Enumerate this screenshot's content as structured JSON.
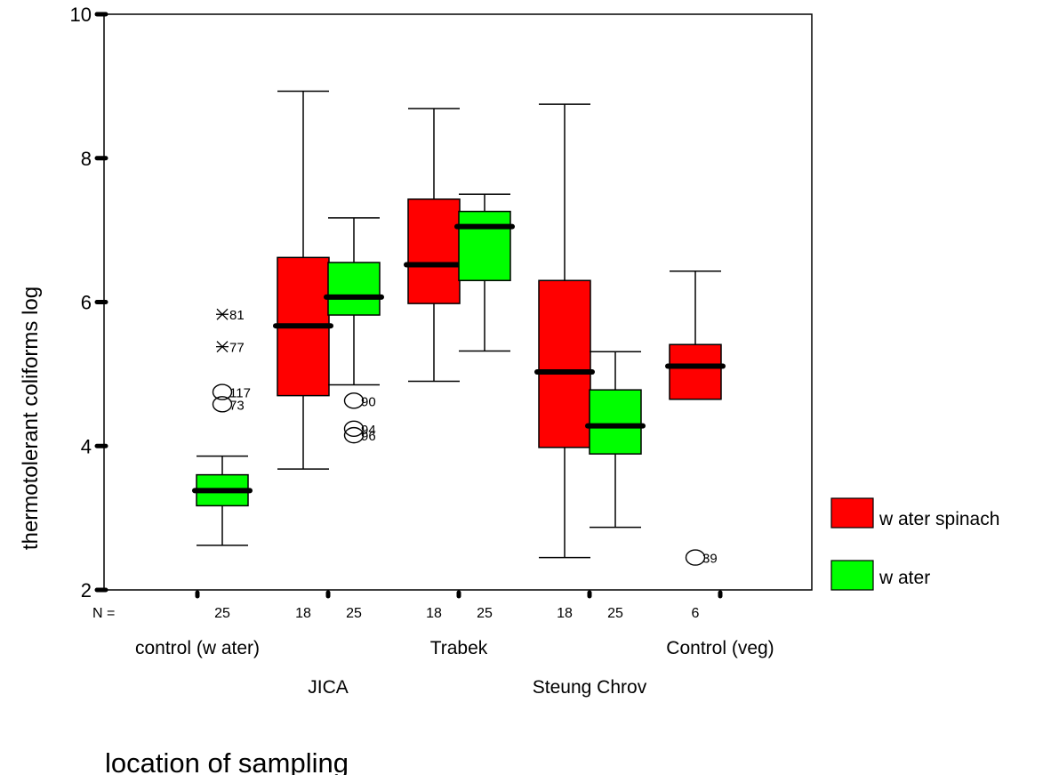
{
  "chart_data": {
    "type": "boxplot",
    "ylabel": "thermotolerant coliforms log",
    "xlabel": "location of sampling",
    "ylim": [
      2,
      10
    ],
    "yticks": [
      "2",
      "4",
      "6",
      "8",
      "10"
    ],
    "n_prefix": "N =",
    "categories": [
      "control (w ater)",
      "JICA",
      "Trabek",
      "Steung Chrov",
      "Control (veg)"
    ],
    "legend": {
      "placement": "right",
      "items": [
        {
          "label": "w ater spinach",
          "color": "#ff0000"
        },
        {
          "label": "w ater",
          "color": "#00ff00"
        }
      ]
    },
    "boxes": [
      {
        "category": 0,
        "series": 1,
        "n": "25",
        "whisker_low": 2.62,
        "q1": 3.17,
        "median": 3.38,
        "q3": 3.6,
        "whisker_high": 3.86,
        "outliers": [
          {
            "value": 5.83,
            "label": "81",
            "marker": "star"
          },
          {
            "value": 5.38,
            "label": "77",
            "marker": "star"
          },
          {
            "value": 4.75,
            "label": "117",
            "marker": "circle"
          },
          {
            "value": 4.58,
            "label": "73",
            "marker": "circle"
          }
        ]
      },
      {
        "category": 1,
        "series": 0,
        "n": "18",
        "whisker_low": 3.68,
        "q1": 4.7,
        "median": 5.67,
        "q3": 6.62,
        "whisker_high": 8.93,
        "outliers": []
      },
      {
        "category": 1,
        "series": 1,
        "n": "25",
        "whisker_low": 4.85,
        "q1": 5.82,
        "median": 6.07,
        "q3": 6.55,
        "whisker_high": 7.17,
        "outliers": [
          {
            "value": 4.63,
            "label": "90",
            "marker": "circle"
          },
          {
            "value": 4.24,
            "label": "94",
            "marker": "circle"
          },
          {
            "value": 4.15,
            "label": "96",
            "marker": "circle"
          }
        ]
      },
      {
        "category": 2,
        "series": 0,
        "n": "18",
        "whisker_low": 4.9,
        "q1": 5.98,
        "median": 6.52,
        "q3": 7.43,
        "whisker_high": 8.69,
        "outliers": []
      },
      {
        "category": 2,
        "series": 1,
        "n": "25",
        "whisker_low": 5.32,
        "q1": 6.3,
        "median": 7.05,
        "q3": 7.26,
        "whisker_high": 7.5,
        "outliers": []
      },
      {
        "category": 3,
        "series": 0,
        "n": "18",
        "whisker_low": 2.45,
        "q1": 3.98,
        "median": 5.03,
        "q3": 6.3,
        "whisker_high": 8.75,
        "outliers": []
      },
      {
        "category": 3,
        "series": 1,
        "n": "25",
        "whisker_low": 2.87,
        "q1": 3.89,
        "median": 4.28,
        "q3": 4.78,
        "whisker_high": 5.31,
        "outliers": []
      },
      {
        "category": 4,
        "series": 0,
        "n": "6",
        "whisker_low": 4.65,
        "q1": 4.65,
        "median": 5.11,
        "q3": 5.41,
        "whisker_high": 6.43,
        "outliers": [
          {
            "value": 2.45,
            "label": "39",
            "marker": "circle"
          }
        ]
      }
    ]
  }
}
